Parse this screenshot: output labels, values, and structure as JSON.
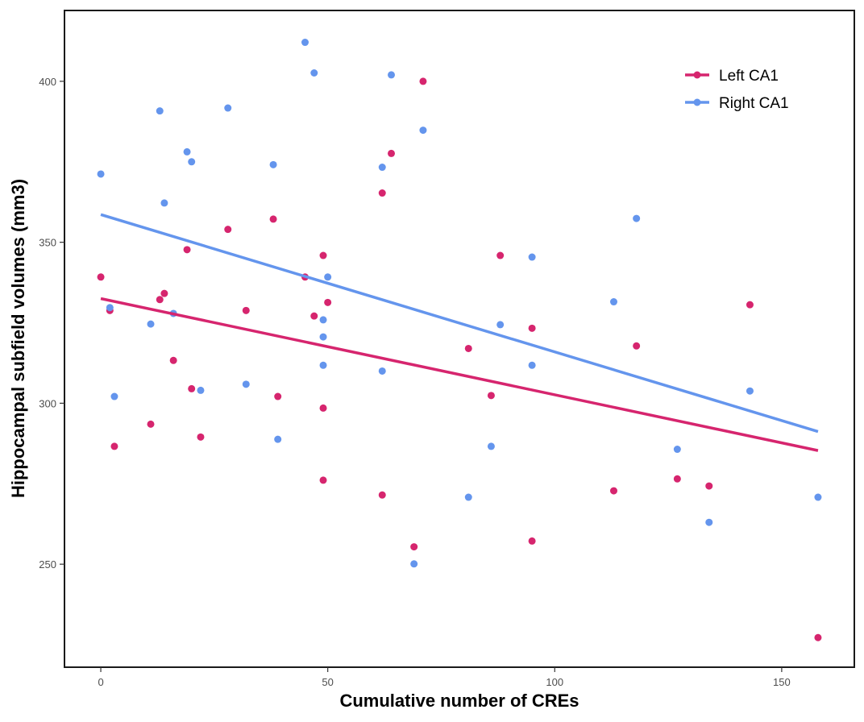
{
  "chart_data": {
    "type": "scatter",
    "title": "",
    "xlabel": "Cumulative number of CREs",
    "ylabel": "Hippocampal subfield volumes (mm3)",
    "xlim": [
      -8,
      166
    ],
    "ylim": [
      218,
      422
    ],
    "xticks": [
      0,
      50,
      100,
      150
    ],
    "yticks": [
      250,
      300,
      350,
      400
    ],
    "xtick_labels": [
      "0",
      "50",
      "100",
      "150"
    ],
    "ytick_labels": [
      "250",
      "300",
      "350",
      "400"
    ],
    "grid": false,
    "legend_position": "top-right",
    "series": [
      {
        "name": "Left CA1",
        "color": "#d6256e",
        "trend": {
          "x": [
            0,
            158
          ],
          "y": [
            332.5,
            285.3
          ]
        },
        "points": [
          {
            "x": 0,
            "y": 339.2
          },
          {
            "x": 2,
            "y": 328.8
          },
          {
            "x": 3,
            "y": 286.6
          },
          {
            "x": 11,
            "y": 293.5
          },
          {
            "x": 13,
            "y": 332.2
          },
          {
            "x": 14,
            "y": 334.1
          },
          {
            "x": 16,
            "y": 313.3
          },
          {
            "x": 19,
            "y": 347.7
          },
          {
            "x": 20,
            "y": 304.5
          },
          {
            "x": 22,
            "y": 289.5
          },
          {
            "x": 28,
            "y": 354.0
          },
          {
            "x": 32,
            "y": 328.8
          },
          {
            "x": 38,
            "y": 357.2
          },
          {
            "x": 39,
            "y": 302.1
          },
          {
            "x": 45,
            "y": 339.2
          },
          {
            "x": 47,
            "y": 327.1
          },
          {
            "x": 49,
            "y": 345.9
          },
          {
            "x": 49,
            "y": 298.5
          },
          {
            "x": 49,
            "y": 276.1
          },
          {
            "x": 50,
            "y": 331.3
          },
          {
            "x": 62,
            "y": 365.3
          },
          {
            "x": 62,
            "y": 271.5
          },
          {
            "x": 64,
            "y": 377.6
          },
          {
            "x": 69,
            "y": 255.4
          },
          {
            "x": 71,
            "y": 400.0
          },
          {
            "x": 81,
            "y": 317.0
          },
          {
            "x": 86,
            "y": 302.4
          },
          {
            "x": 88,
            "y": 345.9
          },
          {
            "x": 95,
            "y": 323.3
          },
          {
            "x": 95,
            "y": 257.2
          },
          {
            "x": 113,
            "y": 272.8
          },
          {
            "x": 118,
            "y": 317.8
          },
          {
            "x": 127,
            "y": 276.5
          },
          {
            "x": 134,
            "y": 274.3
          },
          {
            "x": 143,
            "y": 330.6
          },
          {
            "x": 158,
            "y": 227.2
          }
        ]
      },
      {
        "name": "Right CA1",
        "color": "#6495ed",
        "trend": {
          "x": [
            0,
            158
          ],
          "y": [
            358.6,
            291.2
          ]
        },
        "points": [
          {
            "x": 0,
            "y": 371.2
          },
          {
            "x": 2,
            "y": 329.7
          },
          {
            "x": 3,
            "y": 302.1
          },
          {
            "x": 11,
            "y": 324.6
          },
          {
            "x": 13,
            "y": 390.8
          },
          {
            "x": 14,
            "y": 362.2
          },
          {
            "x": 16,
            "y": 327.9
          },
          {
            "x": 19,
            "y": 378.1
          },
          {
            "x": 20,
            "y": 375.0
          },
          {
            "x": 22,
            "y": 304.0
          },
          {
            "x": 28,
            "y": 391.7
          },
          {
            "x": 32,
            "y": 305.9
          },
          {
            "x": 38,
            "y": 374.1
          },
          {
            "x": 39,
            "y": 288.8
          },
          {
            "x": 45,
            "y": 412.1
          },
          {
            "x": 47,
            "y": 402.6
          },
          {
            "x": 49,
            "y": 325.9
          },
          {
            "x": 49,
            "y": 320.6
          },
          {
            "x": 49,
            "y": 311.8
          },
          {
            "x": 50,
            "y": 339.2
          },
          {
            "x": 62,
            "y": 373.3
          },
          {
            "x": 62,
            "y": 310.0
          },
          {
            "x": 64,
            "y": 402.0
          },
          {
            "x": 69,
            "y": 250.1
          },
          {
            "x": 71,
            "y": 384.8
          },
          {
            "x": 81,
            "y": 270.8
          },
          {
            "x": 86,
            "y": 286.6
          },
          {
            "x": 88,
            "y": 324.4
          },
          {
            "x": 95,
            "y": 345.4
          },
          {
            "x": 95,
            "y": 311.8
          },
          {
            "x": 113,
            "y": 331.5
          },
          {
            "x": 118,
            "y": 357.4
          },
          {
            "x": 127,
            "y": 285.7
          },
          {
            "x": 134,
            "y": 263.0
          },
          {
            "x": 143,
            "y": 303.8
          },
          {
            "x": 158,
            "y": 270.8
          }
        ]
      }
    ]
  }
}
